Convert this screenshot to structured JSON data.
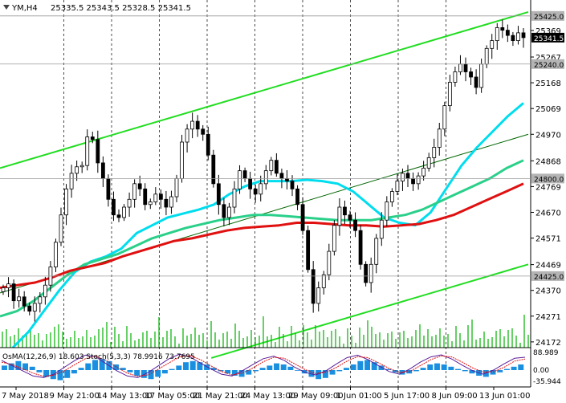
{
  "header": {
    "symbol": "YM,H4",
    "ohlc": "25335.5 25343.5 25328.5 25341.5"
  },
  "chart_data": {
    "type": "candlestick",
    "symbol": "YM",
    "timeframe": "H4",
    "y_ticks": [
      25369,
      25267,
      25168,
      25069,
      24970,
      24868,
      24769,
      24670,
      24571,
      24469,
      24370,
      24271,
      24172
    ],
    "ylim": [
      24150,
      25480
    ],
    "x_ticks": [
      "7 May 2018",
      "9 May 21:00",
      "14 May 13:00",
      "17 May 05:00",
      "21 May 21:00",
      "24 May 13:00",
      "29 May 09:00",
      "1 Jun 01:00",
      "5 Jun 17:00",
      "8 Jun 09:00",
      "13 Jun 01:00"
    ],
    "price_tags": [
      {
        "value": 25425.0,
        "label": "25425.0",
        "style": "level"
      },
      {
        "value": 25341.5,
        "label": "25341.5",
        "style": "current"
      },
      {
        "value": 25240.0,
        "label": "25240.0",
        "style": "level"
      },
      {
        "value": 24800.0,
        "label": "24800.0",
        "style": "level"
      },
      {
        "value": 24425.0,
        "label": "24425.0",
        "style": "level"
      }
    ],
    "closes": [
      24380,
      24395,
      24330,
      24345,
      24310,
      24290,
      24320,
      24345,
      24390,
      24460,
      24555,
      24660,
      24760,
      24820,
      24845,
      24850,
      24960,
      24950,
      24860,
      24800,
      24720,
      24660,
      24650,
      24690,
      24720,
      24780,
      24760,
      24700,
      24710,
      24740,
      24720,
      24690,
      24730,
      24800,
      24940,
      24990,
      25020,
      24990,
      24970,
      24890,
      24780,
      24700,
      24650,
      24690,
      24760,
      24830,
      24800,
      24760,
      24740,
      24780,
      24830,
      24870,
      24820,
      24800,
      24790,
      24760,
      24700,
      24600,
      24450,
      24320,
      24380,
      24430,
      24520,
      24620,
      24690,
      24660,
      24640,
      24600,
      24470,
      24400,
      24470,
      24570,
      24640,
      24710,
      24750,
      24790,
      24820,
      24800,
      24780,
      24810,
      24840,
      24880,
      24920,
      24990,
      25080,
      25170,
      25210,
      25240,
      25210,
      25190,
      25150,
      25240,
      25300,
      25330,
      25380,
      25370,
      25350,
      25330,
      25360,
      25341.5
    ],
    "series": [
      {
        "name": "",
        "color": "#00ddee",
        "values": [
          24150,
          24210,
          24290,
          24370,
          24440,
          24480,
          24500,
          24530,
          24590,
          24620,
          24650,
          24665,
          24680,
          24700,
          24740,
          24770,
          24790,
          24790,
          24790,
          24795,
          24790,
          24780,
          24750,
          24700,
          24650,
          24630,
          24620,
          24670,
          24760,
          24850,
          24920,
          24980,
          25040,
          25090
        ]
      },
      {
        "name": "",
        "color": "#2ad08a",
        "values": [
          24270,
          24290,
          24330,
          24380,
          24430,
          24470,
          24490,
          24510,
          24540,
          24570,
          24590,
          24610,
          24625,
          24640,
          24650,
          24660,
          24660,
          24655,
          24650,
          24645,
          24640,
          24640,
          24640,
          24650,
          24660,
          24680,
          24710,
          24740,
          24770,
          24800,
          24840,
          24870
        ]
      },
      {
        "name": "",
        "color": "#e01010",
        "values": [
          24380,
          24390,
          24400,
          24420,
          24445,
          24460,
          24475,
          24500,
          24520,
          24540,
          24560,
          24570,
          24585,
          24600,
          24610,
          24615,
          24620,
          24630,
          24630,
          24625,
          24620,
          24620,
          24615,
          24620,
          24625,
          24640,
          24660,
          24690,
          24720,
          24750,
          24780
        ]
      }
    ],
    "channel_lines": [
      {
        "name": "",
        "color": "#22dd22",
        "from": [
          0,
          24840
        ],
        "to": [
          1,
          25440
        ]
      },
      {
        "name": "",
        "color": "#22dd22",
        "from": [
          0.4,
          24110
        ],
        "to": [
          1,
          24470
        ]
      },
      {
        "name": "",
        "color": "#006600",
        "from": [
          0,
          24360
        ],
        "to": [
          1,
          24970
        ]
      }
    ],
    "indicator": {
      "label": "OsMA(12,26,9) 18.603  Stoch(5,3,3) 78.9916 73.7695",
      "ticks": [
        "88.989",
        "0.00",
        "-35.944"
      ],
      "histogram": [
        4,
        6,
        8,
        6,
        3,
        -2,
        -6,
        -8,
        -9,
        -7,
        -3,
        2,
        6,
        9,
        10,
        8,
        5,
        2,
        -2,
        -5,
        -7,
        -8,
        -6,
        -3,
        1,
        4,
        7,
        8,
        7,
        5,
        2,
        -1,
        -3,
        -5,
        -6,
        -4,
        -1,
        2,
        4,
        6,
        5,
        3,
        0,
        -3,
        -6,
        -8,
        -7,
        -4,
        -1,
        2,
        5,
        8,
        9,
        7,
        4,
        1,
        -2,
        -4,
        -3,
        -1,
        2,
        5,
        6,
        5,
        3,
        1,
        -1,
        -3,
        -5,
        -6,
        -4,
        -2,
        1,
        3,
        5
      ],
      "stoch_main": [
        70,
        55,
        40,
        25,
        20,
        30,
        50,
        70,
        85,
        80,
        60,
        40,
        25,
        20,
        35,
        55,
        75,
        88,
        80,
        62,
        45,
        30,
        25,
        40,
        58,
        75,
        82,
        70,
        50,
        35,
        28,
        40,
        60,
        78,
        85,
        72,
        55,
        38,
        30,
        45,
        65,
        80,
        86,
        74,
        56,
        40,
        30,
        42,
        60,
        76,
        79
      ],
      "stoch_signal": [
        65,
        58,
        46,
        33,
        24,
        27,
        40,
        58,
        75,
        82,
        70,
        50,
        33,
        24,
        28,
        45,
        63,
        80,
        84,
        72,
        54,
        38,
        28,
        33,
        48,
        66,
        79,
        76,
        60,
        43,
        32,
        35,
        50,
        68,
        81,
        78,
        63,
        47,
        35,
        38,
        55,
        72,
        83,
        80,
        65,
        48,
        36,
        37,
        50,
        68,
        74
      ]
    }
  }
}
